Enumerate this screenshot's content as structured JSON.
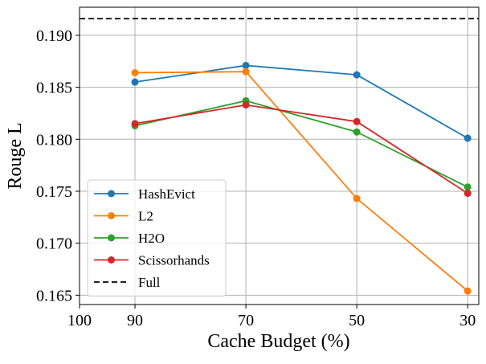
{
  "chart_data": {
    "type": "line",
    "title": "",
    "xlabel": "Cache Budget (%)",
    "ylabel": "Rouge L",
    "x_ticks": [
      100,
      90,
      70,
      50,
      30
    ],
    "x_tick_labels": [
      "100",
      "90",
      "70",
      "50",
      "30"
    ],
    "x_data": [
      90,
      70,
      50,
      30
    ],
    "xlim": [
      100,
      28
    ],
    "ylim": [
      0.1641,
      0.1927
    ],
    "y_ticks": [
      0.165,
      0.17,
      0.175,
      0.18,
      0.185,
      0.19
    ],
    "y_tick_labels": [
      "0.165",
      "0.170",
      "0.175",
      "0.180",
      "0.185",
      "0.190"
    ],
    "grid": true,
    "legend_position": "lower-left",
    "series": [
      {
        "name": "HashEvict",
        "color": "#1f77b4",
        "values": [
          0.1855,
          0.1871,
          0.1862,
          0.1801
        ]
      },
      {
        "name": "L2",
        "color": "#ff7f0e",
        "values": [
          0.1864,
          0.1865,
          0.1743,
          0.1654
        ]
      },
      {
        "name": "H2O",
        "color": "#2ca02c",
        "values": [
          0.1813,
          0.1837,
          0.1807,
          0.1754
        ]
      },
      {
        "name": "Scissorhands",
        "color": "#d62728",
        "values": [
          0.1815,
          0.1833,
          0.1817,
          0.1748
        ]
      }
    ],
    "reference_line": {
      "name": "Full",
      "value": 0.1916,
      "color": "#000000",
      "style": "dashed"
    }
  }
}
